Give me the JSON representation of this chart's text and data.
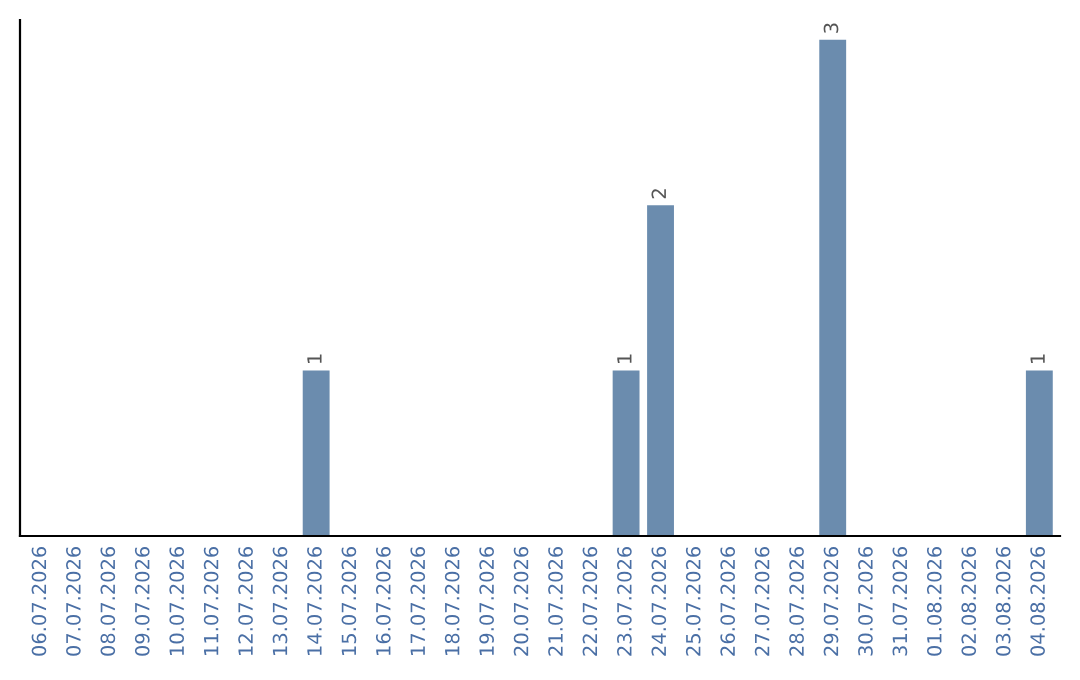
{
  "chart_data": {
    "type": "bar",
    "categories": [
      "06.07.2026",
      "07.07.2026",
      "08.07.2026",
      "09.07.2026",
      "10.07.2026",
      "11.07.2026",
      "12.07.2026",
      "13.07.2026",
      "14.07.2026",
      "15.07.2026",
      "16.07.2026",
      "17.07.2026",
      "18.07.2026",
      "19.07.2026",
      "20.07.2026",
      "21.07.2026",
      "22.07.2026",
      "23.07.2026",
      "24.07.2026",
      "25.07.2026",
      "26.07.2026",
      "27.07.2026",
      "28.07.2026",
      "29.07.2026",
      "30.07.2026",
      "31.07.2026",
      "01.08.2026",
      "02.08.2026",
      "03.08.2026",
      "04.08.2026"
    ],
    "values": [
      0,
      0,
      0,
      0,
      0,
      0,
      0,
      0,
      1,
      0,
      0,
      0,
      0,
      0,
      0,
      0,
      0,
      1,
      2,
      0,
      0,
      0,
      0,
      3,
      0,
      0,
      0,
      0,
      0,
      1
    ],
    "value_labels": [
      null,
      null,
      null,
      null,
      null,
      null,
      null,
      null,
      "1",
      null,
      null,
      null,
      null,
      null,
      null,
      null,
      null,
      "1",
      "2",
      null,
      null,
      null,
      null,
      "3",
      null,
      null,
      null,
      null,
      null,
      "1"
    ],
    "color": "#6b8cae",
    "relative": false,
    "grid": false,
    "legend": false
  }
}
